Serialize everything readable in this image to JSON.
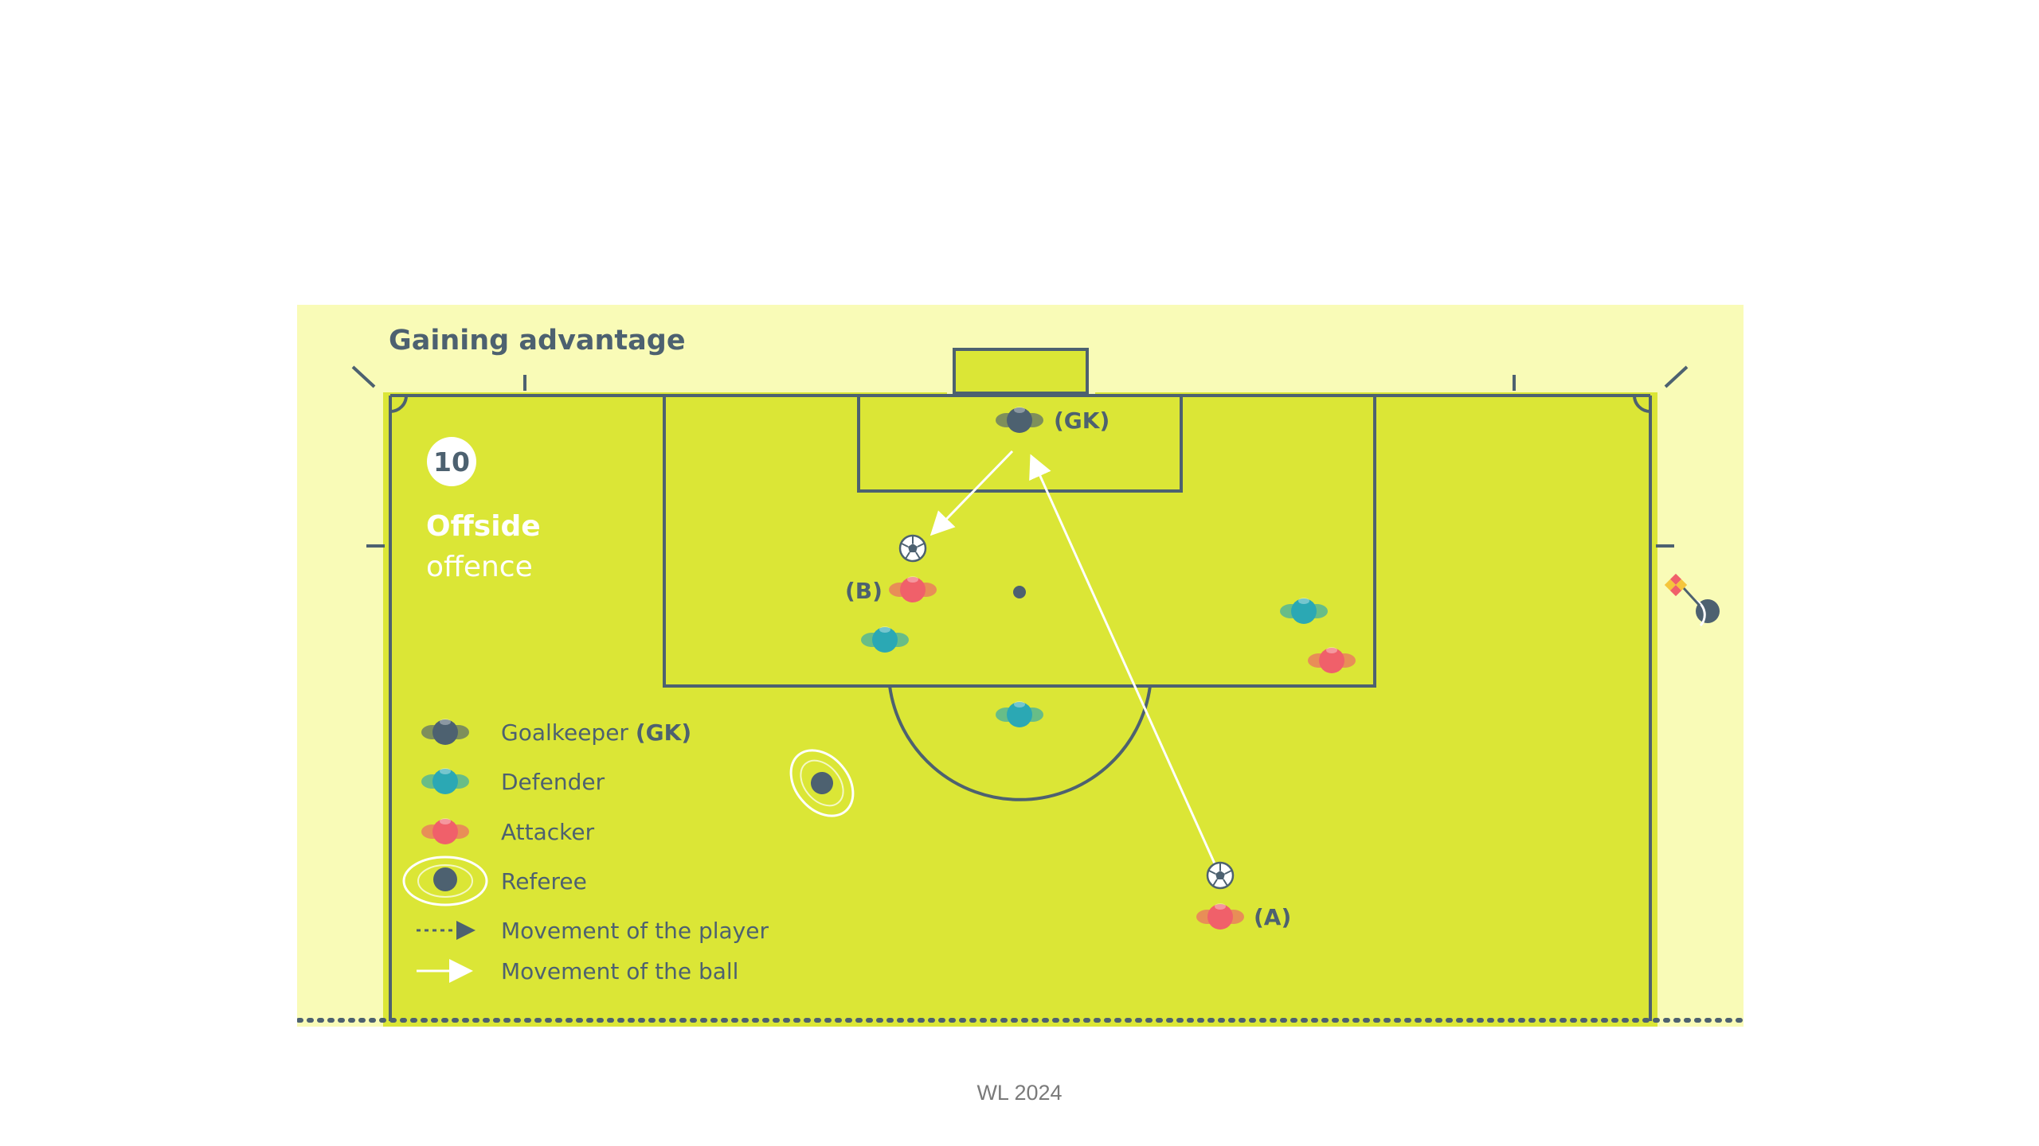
{
  "diagram": {
    "title": "Gaining advantage",
    "number": "10",
    "heading": "Offside",
    "subheading": "offence",
    "legend": {
      "goalkeeper_label": "Goalkeeper ",
      "goalkeeper_abbr": "(GK)",
      "defender": "Defender",
      "attacker": "Attacker",
      "referee": "Referee",
      "player_movement": "Movement of the player",
      "ball_movement": "Movement of the ball"
    },
    "tags": {
      "goalkeeper": "(GK)",
      "attacker_a": "(A)",
      "attacker_b": "(B)"
    },
    "colors": {
      "pitch": "#dbe636",
      "outside": "#f9fbb7",
      "lines": "#4d6170",
      "goalkeeper": "#4d6170",
      "defender": "#2ba8b4",
      "attacker": "#f0606a",
      "ball_path": "#ffffff"
    }
  },
  "footer": "WL 2024"
}
